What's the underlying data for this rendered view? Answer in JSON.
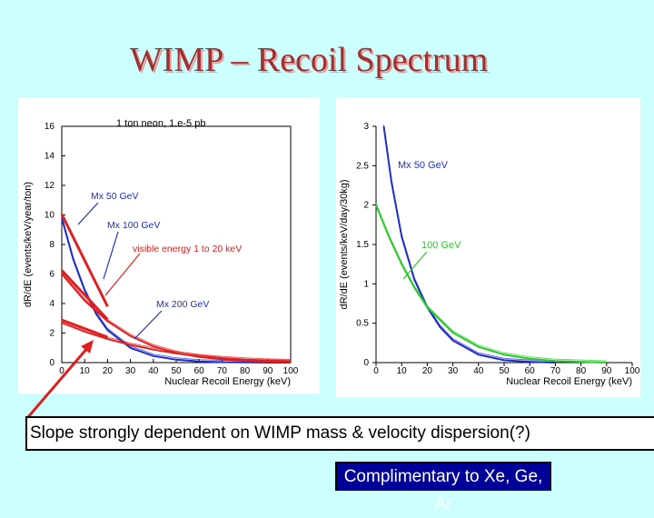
{
  "title": "WIMP – Recoil Spectrum",
  "caption": "Slope strongly dependent on WIMP mass & velocity dispersion(?)",
  "note": "Complimentary to Xe, Ge, Ar",
  "colors": {
    "background": "#CCFFFF",
    "title": "#A03030",
    "red": "#E02020",
    "blue": "#1E2EC8",
    "green": "#2CC82C",
    "note_bg": "#000099"
  },
  "chart_data": [
    {
      "type": "line",
      "title": "1 ton neon, 1.e-5 pb",
      "xlabel": "Nuclear Recoil Energy (keV)",
      "ylabel": "dR/dE (events/keV/year/ton)",
      "xlim": [
        0,
        100
      ],
      "ylim": [
        0,
        16
      ],
      "xticks": [
        0,
        10,
        20,
        30,
        40,
        50,
        60,
        70,
        80,
        90,
        100
      ],
      "yticks": [
        0,
        2,
        4,
        6,
        8,
        10,
        12,
        14,
        16
      ],
      "series": [
        {
          "name": "Mx 50 GeV",
          "color": "blue",
          "x": [
            0,
            5,
            10,
            15,
            20,
            30,
            40,
            50,
            60,
            70,
            80,
            90,
            100
          ],
          "y": [
            9.8,
            7.0,
            4.9,
            3.3,
            2.2,
            1.0,
            0.45,
            0.2,
            0.08,
            0.03,
            0.01,
            0.0,
            0.0
          ]
        },
        {
          "name": "Mx 100 GeV",
          "color": "red",
          "x": [
            0,
            10,
            20,
            30,
            40,
            50,
            60,
            70,
            80,
            90,
            100
          ],
          "y": [
            6.0,
            4.2,
            2.8,
            1.8,
            1.1,
            0.65,
            0.38,
            0.22,
            0.12,
            0.07,
            0.04
          ]
        },
        {
          "name": "Mx 200 GeV",
          "color": "red",
          "x": [
            0,
            10,
            20,
            30,
            40,
            50,
            60,
            70,
            80,
            90,
            100
          ],
          "y": [
            2.7,
            2.1,
            1.6,
            1.2,
            0.88,
            0.62,
            0.43,
            0.3,
            0.2,
            0.13,
            0.09
          ]
        }
      ],
      "annotations": [
        "Mx 50 GeV",
        "Mx 100 GeV",
        "visible energy 1 to 20 keV",
        "Mx 200 GeV"
      ]
    },
    {
      "type": "line",
      "title": "",
      "xlabel": "Nuclear Recoil Energy (keV)",
      "ylabel": "dR/dE (events/keV/day/30kg)",
      "xlim": [
        0,
        100
      ],
      "ylim": [
        0,
        3
      ],
      "xticks": [
        0,
        10,
        20,
        30,
        40,
        50,
        60,
        70,
        80,
        90,
        100
      ],
      "yticks": [
        0,
        0.5,
        1,
        1.5,
        2,
        2.5,
        3
      ],
      "series": [
        {
          "name": "Mx 50 GeV",
          "color": "blue",
          "x": [
            3,
            6,
            10,
            15,
            20,
            25,
            30,
            40,
            50,
            60,
            70
          ],
          "y": [
            3.0,
            2.3,
            1.6,
            1.05,
            0.7,
            0.45,
            0.28,
            0.1,
            0.03,
            0.01,
            0.0
          ]
        },
        {
          "name": "100 GeV",
          "color": "green",
          "x": [
            0,
            5,
            10,
            15,
            20,
            30,
            40,
            50,
            60,
            70,
            80,
            90
          ],
          "y": [
            2.0,
            1.6,
            1.25,
            0.95,
            0.7,
            0.38,
            0.2,
            0.1,
            0.05,
            0.02,
            0.01,
            0.0
          ]
        }
      ],
      "annotations": [
        "Mx 50 GeV",
        "100 GeV"
      ]
    }
  ]
}
